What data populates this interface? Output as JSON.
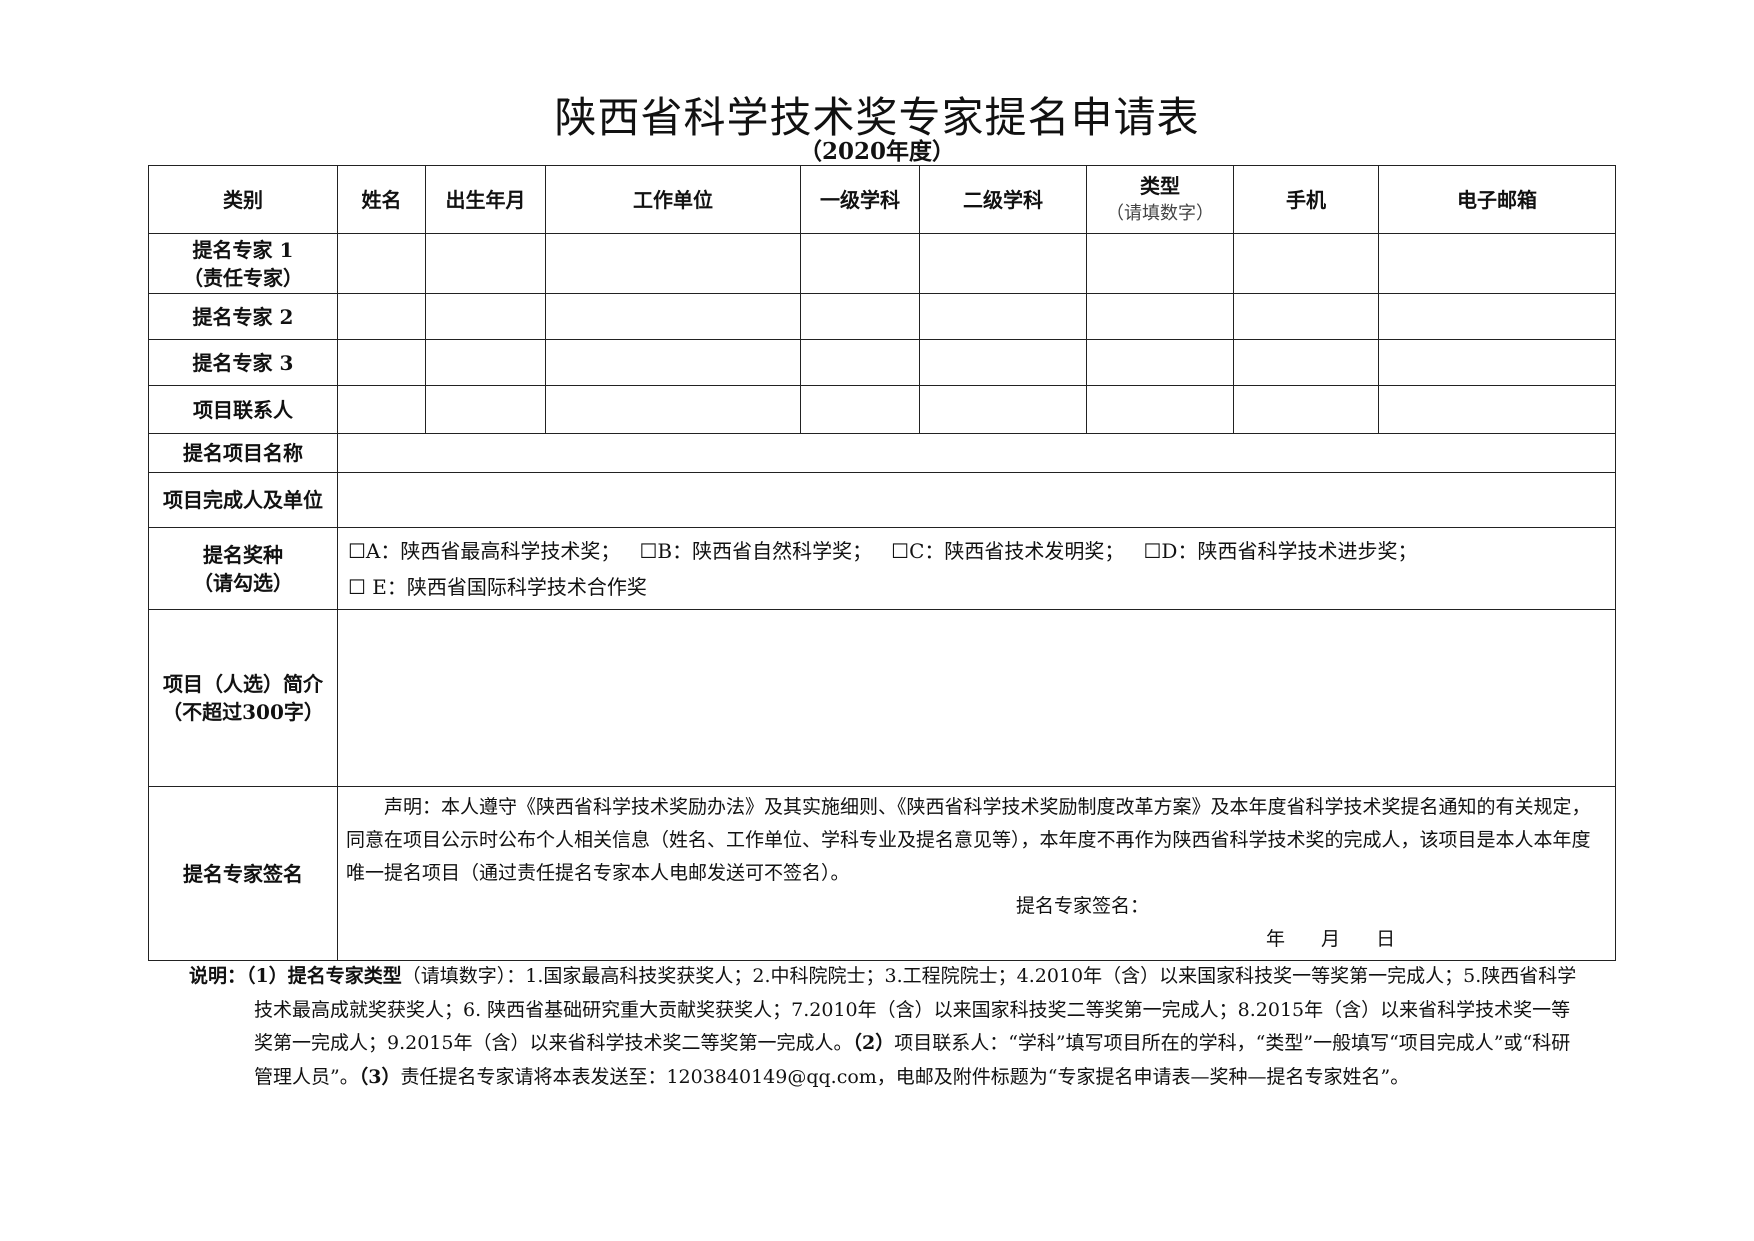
{
  "title": "陕西省科学技术奖专家提名申请表",
  "subtitle": "（2020年度）",
  "header": {
    "category": "类别",
    "name": "姓名",
    "birth": "出生年月",
    "work_unit": "工作单位",
    "discipline1": "一级学科",
    "discipline2": "二级学科",
    "type": "类型",
    "type_hint": "（请填数字）",
    "phone": "手机",
    "email": "电子邮箱"
  },
  "rows": [
    {
      "label": "提名专家 1",
      "sub": "（责任专家）"
    },
    {
      "label": "提名专家 2"
    },
    {
      "label": "提名专家 3"
    },
    {
      "label": "项目联系人"
    }
  ],
  "project_name_label": "提名项目名称",
  "completers_label": "项目完成人及单位",
  "award": {
    "label": "提名奖种",
    "sub": "（请勾选）",
    "options": [
      "☐A：陕西省最高科学技术奖；",
      "☐B：陕西省自然科学奖；",
      "☐C：陕西省技术发明奖；",
      "☐D：陕西省科学技术进步奖；",
      "☐ E：陕西省国际科学技术合作奖"
    ]
  },
  "intro": {
    "label": "项目（人选）简介",
    "sub": "（不超过300字）"
  },
  "signature": {
    "label": "提名专家签名",
    "declaration": "声明：本人遵守《陕西省科学技术奖励办法》及其实施细则、《陕西省科学技术奖励制度改革方案》及本年度省科学技术奖提名通知的有关规定，同意在项目公示时公布个人相关信息（姓名、工作单位、学科专业及提名意见等），本年度不再作为陕西省科学技术奖的完成人，该项目是本人本年度唯一提名项目（通过责任提名专家本人电邮发送可不签名）。",
    "sign_label": "提名专家签名：",
    "date_label": "年 月 日"
  },
  "notes": {
    "prefix": "说明：",
    "p1_head": "（1）提名专家类型",
    "p1_hint": "（请填数字）：",
    "p1_body": "1.国家最高科技奖获奖人；2.中科院院士；3.工程院院士；4.2010年（含）以来国家科技奖一等奖第一完成人；5.陕西省科学技术最高成就奖获奖人；6. 陕西省基础研究重大贡献奖获奖人；7.2010年（含）以来国家科技奖二等奖第一完成人；8.2015年（含）以来省科学技术奖一等奖第一完成人；9.2015年（含）以来省科学技术奖二等奖第一完成人。",
    "p2_head": "（2）",
    "p2_body": "项目联系人：“学科”填写项目所在的学科，“类型”一般填写“项目完成人”或“科研管理人员”。",
    "p3_head": "（3）",
    "p3_body": "责任提名专家请将本表发送至：1203840149@qq.com，电邮及附件标题为“专家提名申请表—奖种—提名专家姓名”。"
  }
}
